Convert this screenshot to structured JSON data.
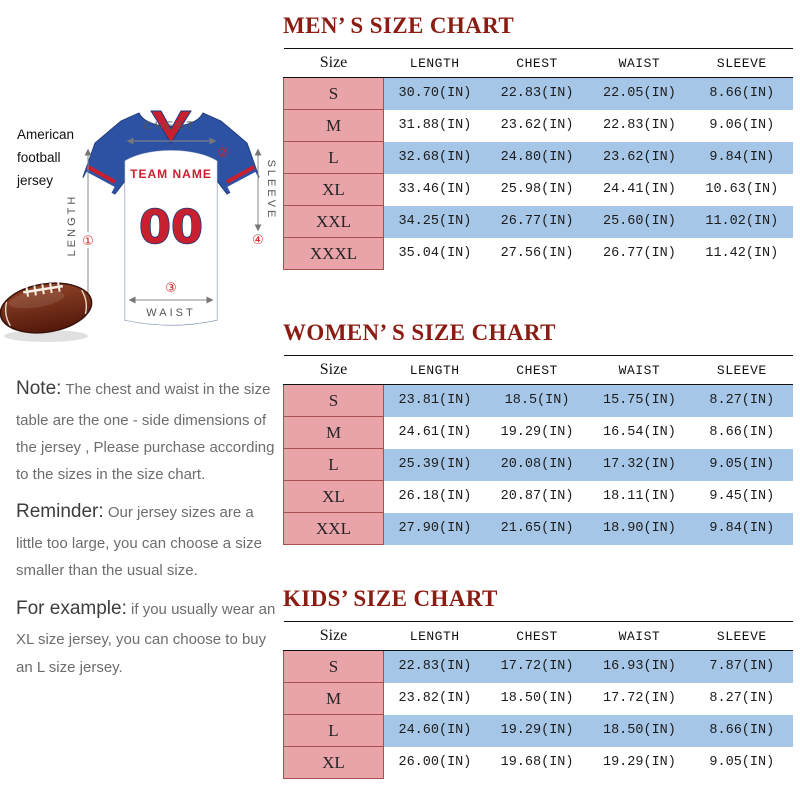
{
  "page": {
    "background": "#ffffff"
  },
  "colors": {
    "title_red": "#8b1c13",
    "size_cell_bg": "#E9A4AA",
    "size_cell_border": "#AA5050",
    "stripe_blue": "#A5C6E7",
    "jersey_blue": "#2E52A3",
    "jersey_red": "#C8202F",
    "marker_red": "#D42222"
  },
  "left": {
    "caption": "American football jersey",
    "jersey": {
      "team_name": "TEAM NAME",
      "number": "00",
      "measurements": {
        "chest": {
          "label": "CHEST",
          "marker": "②"
        },
        "sleeve": {
          "label": "SLEEVE",
          "marker": "④"
        },
        "length": {
          "label": "LENGTH",
          "marker": "①"
        },
        "waist": {
          "label": "WAIST",
          "marker": "③"
        }
      }
    },
    "notes": [
      {
        "lead": "Note:",
        "text": "The chest and waist in the size table are the one - side dimensions of the jersey , Please purchase according to the sizes in the size chart."
      },
      {
        "lead": "Reminder:",
        "text": "Our jersey sizes are a little too large, you can choose a size smaller than the usual size."
      },
      {
        "lead": "For example:",
        "text": "if you usually wear an XL size jersey, you can choose to buy an L size jersey."
      }
    ]
  },
  "charts": [
    {
      "title": "MEN’ S SIZE CHART",
      "headers": [
        "Size",
        "LENGTH",
        "CHEST",
        "WAIST",
        "SLEEVE"
      ],
      "rows": [
        [
          "S",
          "30.70(IN)",
          "22.83(IN)",
          "22.05(IN)",
          "8.66(IN)"
        ],
        [
          "M",
          "31.88(IN)",
          "23.62(IN)",
          "22.83(IN)",
          "9.06(IN)"
        ],
        [
          "L",
          "32.68(IN)",
          "24.80(IN)",
          "23.62(IN)",
          "9.84(IN)"
        ],
        [
          "XL",
          "33.46(IN)",
          "25.98(IN)",
          "24.41(IN)",
          "10.63(IN)"
        ],
        [
          "XXL",
          "34.25(IN)",
          "26.77(IN)",
          "25.60(IN)",
          "11.02(IN)"
        ],
        [
          "XXXL",
          "35.04(IN)",
          "27.56(IN)",
          "26.77(IN)",
          "11.42(IN)"
        ]
      ]
    },
    {
      "title": "WOMEN’ S SIZE CHART",
      "headers": [
        "Size",
        "LENGTH",
        "CHEST",
        "WAIST",
        "SLEEVE"
      ],
      "rows": [
        [
          "S",
          "23.81(IN)",
          "18.5(IN)",
          "15.75(IN)",
          "8.27(IN)"
        ],
        [
          "M",
          "24.61(IN)",
          "19.29(IN)",
          "16.54(IN)",
          "8.66(IN)"
        ],
        [
          "L",
          "25.39(IN)",
          "20.08(IN)",
          "17.32(IN)",
          "9.05(IN)"
        ],
        [
          "XL",
          "26.18(IN)",
          "20.87(IN)",
          "18.11(IN)",
          "9.45(IN)"
        ],
        [
          "XXL",
          "27.90(IN)",
          "21.65(IN)",
          "18.90(IN)",
          "9.84(IN)"
        ]
      ]
    },
    {
      "title": "KIDS’ SIZE CHART",
      "headers": [
        "Size",
        "LENGTH",
        "CHEST",
        "WAIST",
        "SLEEVE"
      ],
      "rows": [
        [
          "S",
          "22.83(IN)",
          "17.72(IN)",
          "16.93(IN)",
          "7.87(IN)"
        ],
        [
          "M",
          "23.82(IN)",
          "18.50(IN)",
          "17.72(IN)",
          "8.27(IN)"
        ],
        [
          "L",
          "24.60(IN)",
          "19.29(IN)",
          "18.50(IN)",
          "8.66(IN)"
        ],
        [
          "XL",
          "26.00(IN)",
          "19.68(IN)",
          "19.29(IN)",
          "9.05(IN)"
        ]
      ]
    }
  ]
}
